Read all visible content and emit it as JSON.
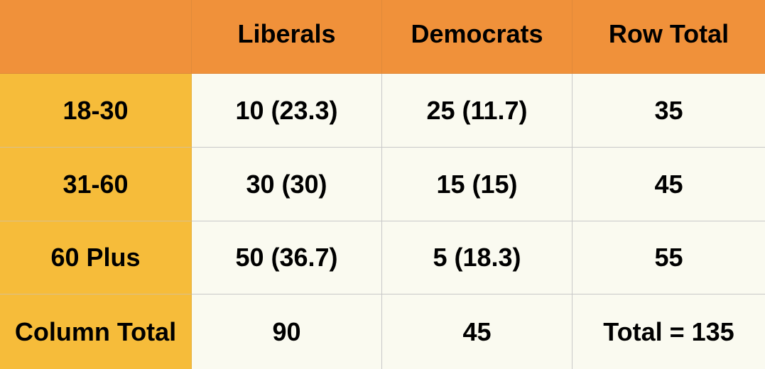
{
  "table": {
    "header": [
      "",
      "Liberals",
      "Democrats",
      "Row Total"
    ],
    "rows": [
      {
        "label": "18-30",
        "cells": [
          "10 (23.3)",
          "25 (11.7)",
          "35"
        ]
      },
      {
        "label": "31-60",
        "cells": [
          "30 (30)",
          "15 (15)",
          "45"
        ]
      },
      {
        "label": "60 Plus",
        "cells": [
          "50 (36.7)",
          "5 (18.3)",
          "55"
        ]
      },
      {
        "label": "Column Total",
        "cells": [
          "90",
          "45",
          "Total = 135"
        ]
      }
    ]
  },
  "colors": {
    "header_bg": "#f0913a",
    "row_label_bg": "#f6bc3a",
    "body_bg": "#fafaf0"
  }
}
